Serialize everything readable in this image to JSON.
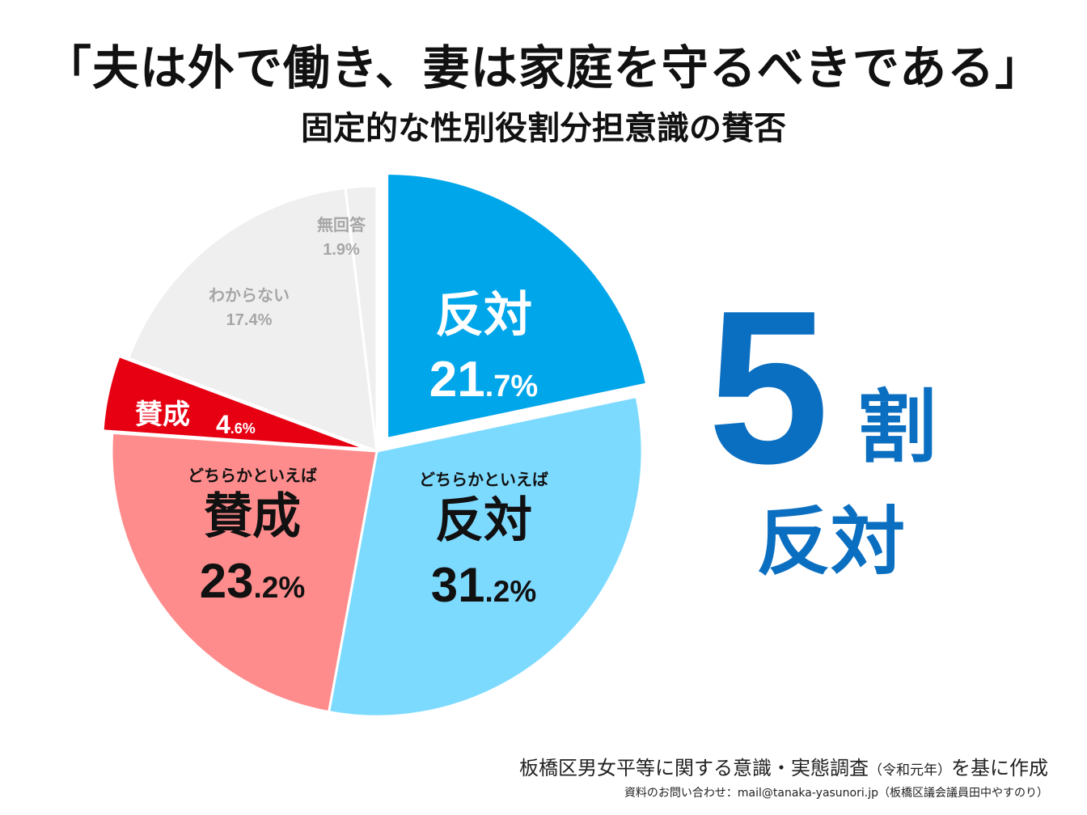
{
  "header": {
    "title": "「夫は外で働き、妻は家庭を守るべきである」",
    "subtitle": "固定的な性別役割分担意識の賛否"
  },
  "chart_data": {
    "type": "pie",
    "start": "12 o'clock, clockwise",
    "slices": [
      {
        "key": "hantai",
        "label": "反対",
        "value_int": "21",
        "value_dec": ".7%",
        "value": 21.7,
        "color": "#00a6ea",
        "text_color": "#ffffff"
      },
      {
        "key": "dochira_hantai",
        "label_small": "どちらかといえば",
        "label": "反対",
        "value_int": "31",
        "value_dec": ".2%",
        "value": 31.2,
        "color": "#7ddaff",
        "text_color": "#111111"
      },
      {
        "key": "dochira_sansei",
        "label_small": "どちらかといえば",
        "label": "賛成",
        "value_int": "23",
        "value_dec": ".2%",
        "value": 23.2,
        "color": "#ff8c8c",
        "text_color": "#111111"
      },
      {
        "key": "sansei",
        "label": "賛成",
        "value_int": "4",
        "value_dec": ".6%",
        "value": 4.6,
        "color": "#e60012",
        "text_color": "#ffffff"
      },
      {
        "key": "wakaranai",
        "label": "わからない",
        "value_pct": "17.4%",
        "value": 17.4,
        "color": "#efefef",
        "text_color": "#a6a6a6"
      },
      {
        "key": "mukaitou",
        "label": "無回答",
        "value_pct": "1.9%",
        "value": 1.9,
        "color": "#efefef",
        "text_color": "#a6a6a6"
      }
    ]
  },
  "callout": {
    "number": "5",
    "unit": "割",
    "label": "反対",
    "color": "#0b6fc1"
  },
  "footer": {
    "source": "板橋区男女平等に関する意識・実態調査",
    "source_year": "（令和元年）",
    "source_suffix": "を基に作成",
    "contact": "資料のお問い合わせ：mail@tanaka-yasunori.jp（板橋区議会議員田中やすのり）"
  }
}
